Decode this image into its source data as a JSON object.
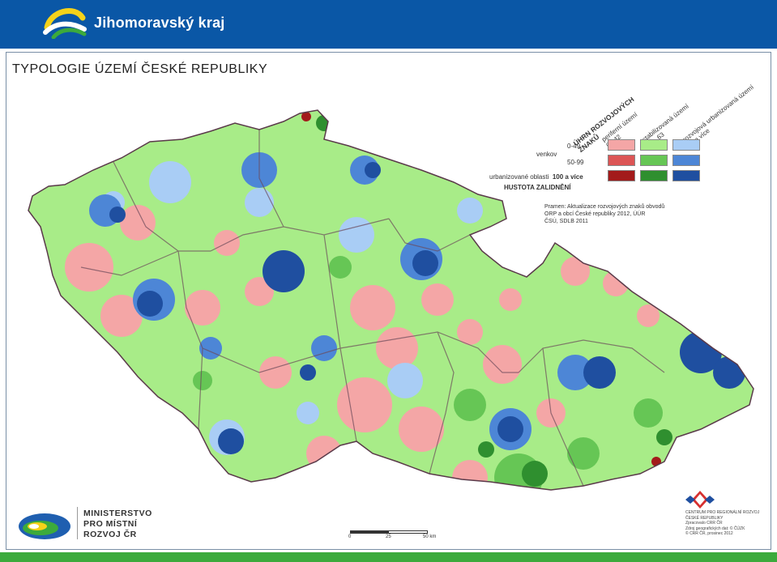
{
  "header": {
    "region_name": "Jihomoravský kraj"
  },
  "map": {
    "title": "TYPOLOGIE ÚZEMÍ ČESKÉ REPUBLIKY",
    "legend": {
      "group_title": "ÚHRN ROZVOJOVÝCH ZNAKŮ",
      "group_title_line1": "ÚHRN ROZVOJOVÝCH",
      "group_title_line2": "ZNAKŮ",
      "columns": [
        {
          "name": "periferní území",
          "range": "0 - 42"
        },
        {
          "name": "stabilizovaná území",
          "range": "43 - 63"
        },
        {
          "name": "rozvojová urbanizovaná území",
          "range": "64 a více"
        }
      ],
      "rows": [
        {
          "label": "0-49",
          "colors": [
            "#f4a6a6",
            "#a8ec88",
            "#a9cdf5"
          ]
        },
        {
          "label": "50-99",
          "colors": [
            "#dc5555",
            "#66c655",
            "#4d86d6"
          ]
        },
        {
          "label": "100 a více",
          "colors": [
            "#a31b1b",
            "#2f8f2f",
            "#1f4fa0"
          ]
        }
      ],
      "venkov_label": "venkov",
      "urban_label": "urbanizované oblasti",
      "density_title": "HUSTOTA ZALIDNĚNÍ"
    },
    "source": {
      "line1": "Pramen: Aktualizace rozvojových znaků obvodů",
      "line2": "ORP a obcí České republiky 2012, ÚÚR",
      "line3": "ČSÚ, SDLB 2011"
    },
    "scale": {
      "t0": "0",
      "t1": "25",
      "t2": "50 km"
    },
    "colors": {
      "land_light_green": "#a8ec88",
      "land_pink": "#f4a6a6",
      "land_blue": "#4d86d6",
      "land_dark_blue": "#1f4fa0",
      "land_light_blue": "#a9cdf5",
      "land_green": "#66c655",
      "border": "#6b4a5a"
    }
  },
  "footer_logos": {
    "ministry_line1": "MINISTERSTVO",
    "ministry_line2": "PRO MÍSTNÍ",
    "ministry_line3": "ROZVOJ ČR",
    "crr_line1": "CENTRUM PRO REGIONÁLNÍ ROZVOJ",
    "crr_line2": "ČESKÉ REPUBLIKY",
    "crr_line3": "Zpracovalo CRR ČR",
    "crr_line4": "Zdroj geografických dat: © ČÚZK",
    "crr_line5": "© CRR ČR, prosinec 2012"
  },
  "branding": {
    "header_bg": "#0a57a6",
    "footer_bg": "#3caa3c"
  }
}
